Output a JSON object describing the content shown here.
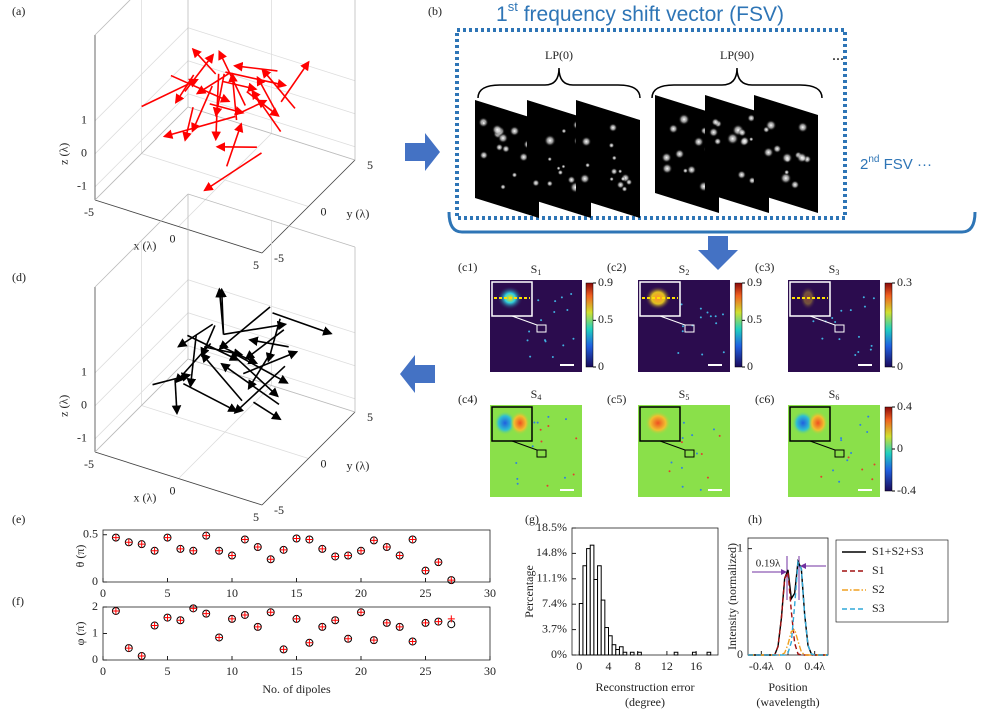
{
  "panel_labels": [
    "(a)",
    "(b)",
    "(c1)",
    "(c2)",
    "(c3)",
    "(c4)",
    "(c5)",
    "(c6)",
    "(d)",
    "(e)",
    "(f)",
    "(g)",
    "(h)"
  ],
  "plot3d": [
    {
      "zticks": [
        1,
        0,
        -1
      ],
      "xticks": [
        -5,
        0,
        5
      ],
      "yticks": [
        5,
        0,
        -5
      ],
      "xlabel": "x (λ)",
      "ylabel": "y (λ)",
      "zlabel": "z (λ)",
      "color": "#ff0000"
    },
    {
      "zticks": [
        1,
        0,
        -1
      ],
      "xticks": [
        -5,
        0,
        5
      ],
      "yticks": [
        5,
        0,
        -5
      ],
      "xlabel": "x (λ)",
      "ylabel": "y (λ)",
      "zlabel": "z (λ)",
      "color": "#000000"
    }
  ],
  "fsv": {
    "first": [
      "1",
      "st",
      " frequency shift vector (FSV)"
    ],
    "second": [
      "2",
      "nd",
      " FSV ···"
    ],
    "groups": [
      "LP(0)",
      "LP(90)"
    ],
    "more": "···"
  },
  "maps": [
    {
      "title": [
        "S",
        "1"
      ]
    },
    {
      "title": [
        "S",
        "2"
      ]
    },
    {
      "title": [
        "S",
        "3"
      ]
    },
    {
      "title": [
        "S",
        "4"
      ]
    },
    {
      "title": [
        "S",
        "5"
      ]
    },
    {
      "title": [
        "S",
        "6"
      ]
    }
  ],
  "colorbars": [
    {
      "clim": [
        0,
        0.9
      ],
      "ticks": [
        0.9,
        0.5,
        0
      ]
    },
    {
      "clim": [
        0,
        0.9
      ],
      "ticks": [
        0.9,
        0.5,
        0
      ]
    },
    {
      "clim": [
        0,
        0.3
      ],
      "ticks": [
        0.3,
        0
      ]
    },
    {
      "clim": [
        -0.4,
        0.4
      ],
      "ticks": [
        0.4,
        0,
        -0.4
      ]
    }
  ],
  "chart_data": [
    {
      "type": "scatter",
      "ylabel": "θ (π)",
      "x": [
        1,
        2,
        3,
        4,
        5,
        6,
        7,
        8,
        9,
        10,
        11,
        12,
        13,
        14,
        15,
        16,
        17,
        18,
        19,
        20,
        21,
        22,
        23,
        24,
        25,
        26,
        27
      ],
      "series": [
        {
          "color": "#000000",
          "marker": "circle",
          "values": [
            0.47,
            0.42,
            0.4,
            0.33,
            0.47,
            0.35,
            0.33,
            0.49,
            0.33,
            0.28,
            0.45,
            0.37,
            0.24,
            0.34,
            0.46,
            0.45,
            0.35,
            0.27,
            0.28,
            0.33,
            0.44,
            0.37,
            0.28,
            0.45,
            0.12,
            0.21,
            0.02
          ]
        },
        {
          "color": "#ff0000",
          "marker": "plus",
          "values": [
            0.47,
            0.42,
            0.4,
            0.33,
            0.47,
            0.35,
            0.33,
            0.49,
            0.33,
            0.28,
            0.45,
            0.37,
            0.24,
            0.34,
            0.46,
            0.45,
            0.35,
            0.27,
            0.28,
            0.33,
            0.44,
            0.37,
            0.28,
            0.45,
            0.12,
            0.21,
            0.02
          ]
        }
      ],
      "xlim": [
        0,
        30
      ],
      "xticks": [
        0,
        5,
        10,
        15,
        20,
        25,
        30
      ],
      "ylim": [
        0,
        0.55
      ],
      "yticks": [
        0,
        0.5
      ]
    },
    {
      "type": "scatter",
      "ylabel": "φ (π)",
      "xlabel": "No. of dipoles",
      "x": [
        1,
        2,
        3,
        4,
        5,
        6,
        7,
        8,
        9,
        10,
        11,
        12,
        13,
        14,
        15,
        16,
        17,
        18,
        19,
        20,
        21,
        22,
        23,
        24,
        25,
        26,
        27
      ],
      "series": [
        {
          "color": "#000000",
          "marker": "circle",
          "values": [
            1.85,
            0.45,
            0.15,
            1.3,
            1.6,
            1.5,
            1.95,
            1.75,
            0.85,
            1.55,
            1.7,
            1.25,
            1.8,
            0.4,
            1.55,
            0.65,
            1.25,
            1.5,
            0.8,
            1.8,
            0.75,
            1.4,
            1.25,
            0.7,
            1.4,
            1.45,
            1.35
          ]
        },
        {
          "color": "#ff0000",
          "marker": "plus",
          "values": [
            1.85,
            0.45,
            0.15,
            1.3,
            1.6,
            1.5,
            1.95,
            1.75,
            0.85,
            1.55,
            1.7,
            1.25,
            1.8,
            0.4,
            1.55,
            0.65,
            1.25,
            1.5,
            0.8,
            1.8,
            0.75,
            1.4,
            1.25,
            0.7,
            1.4,
            1.45,
            1.55
          ]
        }
      ],
      "xlim": [
        0,
        30
      ],
      "xticks": [
        0,
        5,
        10,
        15,
        20,
        25,
        30
      ],
      "ylim": [
        0,
        2
      ],
      "yticks": [
        0,
        1,
        2
      ]
    },
    {
      "type": "histogram",
      "ylabel": "Percentage",
      "xlabel": [
        "Reconstruction error",
        "(degree)"
      ],
      "bins": [
        0,
        0.5,
        1,
        1.5,
        2,
        2.5,
        3,
        3.5,
        4,
        4.5,
        5,
        5.5,
        6,
        6.5,
        7,
        7.5,
        8,
        8.5,
        9,
        9.5,
        10,
        10.5,
        11,
        11.5,
        12,
        12.5,
        13,
        13.5,
        14,
        14.5,
        15,
        15.5,
        16,
        16.5,
        17,
        17.5,
        18
      ],
      "values": [
        7.5,
        13,
        15.5,
        16,
        11,
        13,
        8,
        4,
        2.8,
        1.5,
        0.8,
        1.2,
        0.4,
        0,
        0.4,
        0,
        0.4,
        0,
        0,
        0,
        0,
        0,
        0,
        0,
        0,
        0,
        0.4,
        0,
        0,
        0,
        0,
        0.4,
        0,
        0,
        0,
        0.4
      ],
      "color": "#ffffff",
      "xlim": [
        -1,
        19
      ],
      "xticks": [
        0,
        4,
        8,
        12,
        16
      ],
      "ylim": [
        0,
        18.5
      ],
      "yticks": [
        {
          "value": 0,
          "label": "0%"
        },
        {
          "value": 3.7,
          "label": "3.7%"
        },
        {
          "value": 7.4,
          "label": "7.4%"
        },
        {
          "value": 11.1,
          "label": "11.1%"
        },
        {
          "value": 14.8,
          "label": "14.8%"
        },
        {
          "value": 18.5,
          "label": "18.5%"
        }
      ]
    },
    {
      "type": "line",
      "ylabel": "Intensity (normalized)",
      "xlabel": [
        "Position",
        "(wavelength)"
      ],
      "annotation": "0.19λ",
      "legend": "outside-right",
      "x": [
        -0.6,
        -0.55,
        -0.5,
        -0.45,
        -0.4,
        -0.35,
        -0.3,
        -0.25,
        -0.2,
        -0.15,
        -0.1,
        -0.05,
        0,
        0.05,
        0.1,
        0.15,
        0.2,
        0.25,
        0.3,
        0.35,
        0.4,
        0.45,
        0.5,
        0.55,
        0.6
      ],
      "series": [
        {
          "name": "S1+S2+S3",
          "color": "#000000",
          "dash": "solid",
          "values": [
            0,
            0,
            0,
            0,
            0,
            0,
            0,
            0,
            0,
            0.08,
            0.34,
            0.72,
            0.8,
            0.53,
            0.58,
            0.88,
            0.81,
            0.38,
            0.09,
            0.01,
            0,
            0,
            0,
            0,
            0
          ]
        },
        {
          "name": "S1",
          "color": "#a01010",
          "dash": "dashed",
          "values": [
            0,
            0,
            0,
            0,
            0,
            0,
            0,
            0,
            0,
            0.08,
            0.34,
            0.72,
            0.78,
            0.41,
            0.11,
            0.01,
            0,
            0,
            0,
            0,
            0,
            0,
            0,
            0,
            0
          ]
        },
        {
          "name": "S2",
          "color": "#f0a020",
          "dash": "dashdot",
          "values": [
            0,
            0,
            0,
            0,
            0,
            0,
            0,
            0,
            0,
            0,
            0,
            0.02,
            0.1,
            0.22,
            0.24,
            0.13,
            0.03,
            0,
            0,
            0,
            0,
            0,
            0,
            0,
            0
          ]
        },
        {
          "name": "S3",
          "color": "#30a8d8",
          "dash": "dashed",
          "values": [
            0,
            0,
            0,
            0,
            0,
            0,
            0,
            0,
            0,
            0,
            0,
            0,
            0.02,
            0.12,
            0.47,
            0.87,
            0.81,
            0.38,
            0.09,
            0.01,
            0,
            0,
            0,
            0,
            0
          ]
        }
      ],
      "xlim": [
        -0.6,
        0.6
      ],
      "xticks": [
        {
          "value": -0.4,
          "label": "-0.4λ"
        },
        0,
        {
          "value": 0.4,
          "label": "0.4λ"
        }
      ],
      "ylim": [
        0,
        1.1
      ],
      "yticks": [
        0,
        1
      ]
    }
  ]
}
